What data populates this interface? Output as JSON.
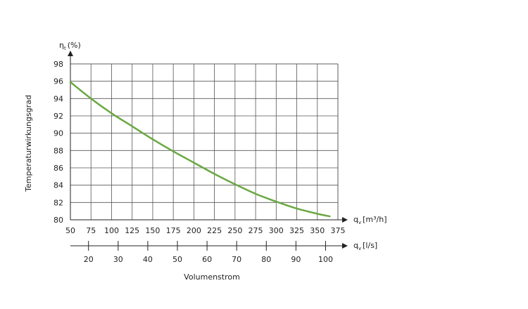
{
  "chart_data": {
    "type": "line",
    "y_axis_label": "Temperaturwirkungsgrad",
    "y_unit_symbol": "η",
    "y_unit_subscript": "t",
    "y_unit": "(%)",
    "ylim": [
      80,
      98
    ],
    "y_ticks": [
      "80",
      "82",
      "84",
      "86",
      "88",
      "90",
      "92",
      "94",
      "96",
      "98"
    ],
    "x_primary_symbol": "q",
    "x_primary_subscript": "v",
    "x_primary_unit": "[m³/h]",
    "xlim": [
      50,
      375
    ],
    "x_primary_ticks": [
      "50",
      "75",
      "100",
      "125",
      "150",
      "175",
      "200",
      "225",
      "250",
      "275",
      "300",
      "325",
      "350",
      "375"
    ],
    "x_secondary_symbol": "q",
    "x_secondary_subscript": "v",
    "x_secondary_unit": "[l/s]",
    "x_secondary_ticks": [
      "20",
      "30",
      "40",
      "50",
      "60",
      "70",
      "80",
      "90",
      "100"
    ],
    "xlabel": "Volumenstrom",
    "grid": true,
    "series": [
      {
        "color": "#6aa842",
        "points": [
          {
            "x": 50,
            "y": 95.9
          },
          {
            "x": 75,
            "y": 94.0
          },
          {
            "x": 100,
            "y": 92.3
          },
          {
            "x": 125,
            "y": 90.8
          },
          {
            "x": 150,
            "y": 89.3
          },
          {
            "x": 175,
            "y": 87.9
          },
          {
            "x": 200,
            "y": 86.6
          },
          {
            "x": 225,
            "y": 85.3
          },
          {
            "x": 250,
            "y": 84.1
          },
          {
            "x": 275,
            "y": 83.0
          },
          {
            "x": 300,
            "y": 82.1
          },
          {
            "x": 325,
            "y": 81.3
          },
          {
            "x": 350,
            "y": 80.7
          },
          {
            "x": 365,
            "y": 80.4
          }
        ]
      }
    ]
  }
}
